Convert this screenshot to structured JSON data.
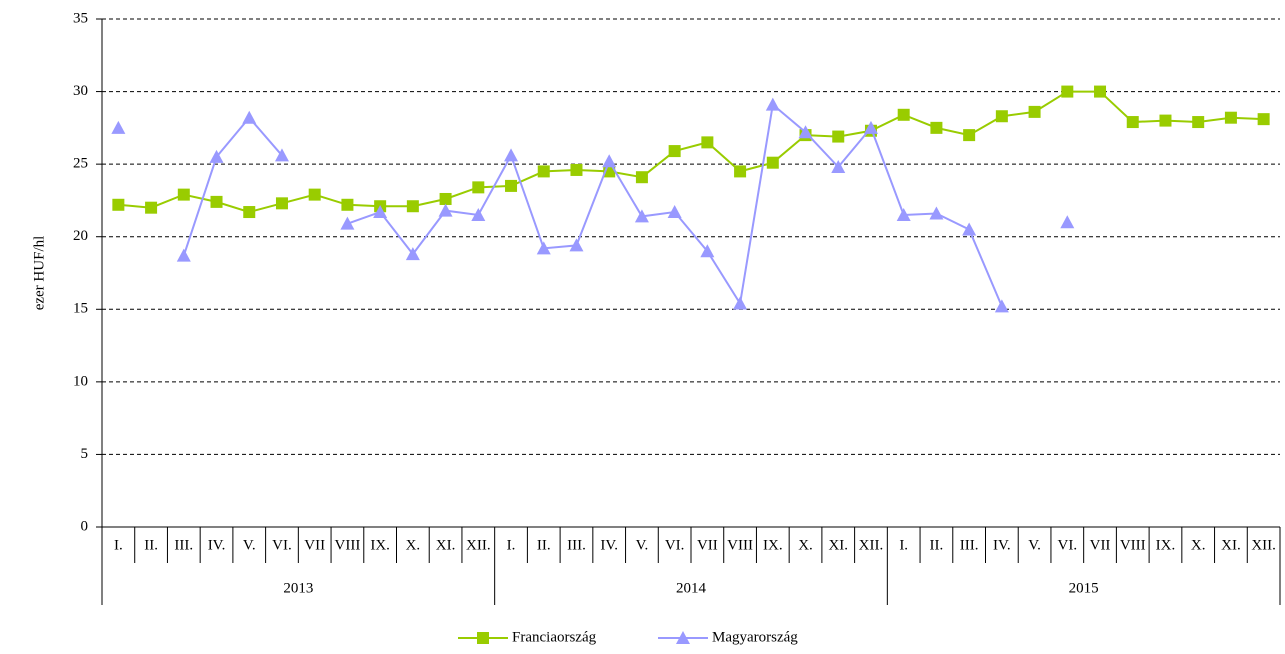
{
  "chart_data": {
    "type": "line",
    "y_label": "ezer HUF/hl",
    "categories": [
      "I.",
      "II.",
      "III.",
      "IV.",
      "V.",
      "VI.",
      "VII",
      "VIII",
      "IX.",
      "X.",
      "XI.",
      "XII.",
      "I.",
      "II.",
      "III.",
      "IV.",
      "V.",
      "VI.",
      "VII",
      "VIII",
      "IX.",
      "X.",
      "XI.",
      "XII.",
      "I.",
      "II.",
      "III.",
      "IV.",
      "V.",
      "VI.",
      "VII",
      "VIII",
      "IX.",
      "X.",
      "XI.",
      "XII."
    ],
    "category_groups": [
      "2013",
      "2014",
      "2015"
    ],
    "series": [
      {
        "name": "Franciaország",
        "color": "#99cc00",
        "marker": "square",
        "values": [
          22.2,
          22.0,
          22.9,
          22.4,
          21.7,
          22.3,
          22.9,
          22.2,
          22.1,
          22.1,
          22.6,
          23.4,
          23.5,
          24.5,
          24.6,
          24.5,
          24.1,
          25.9,
          26.5,
          24.5,
          25.1,
          27.0,
          26.9,
          27.3,
          28.4,
          27.5,
          27.0,
          28.3,
          28.6,
          30.0,
          30.0,
          27.9,
          28.0,
          27.9,
          28.2,
          28.1
        ]
      },
      {
        "name": "Magyarország",
        "color": "#9999ff",
        "marker": "triangle",
        "values": [
          27.5,
          null,
          18.7,
          25.5,
          28.2,
          25.6,
          null,
          20.9,
          21.7,
          18.8,
          21.8,
          21.5,
          25.6,
          19.2,
          19.4,
          25.2,
          21.4,
          21.7,
          19.0,
          15.4,
          29.1,
          27.2,
          24.8,
          27.5,
          21.5,
          21.6,
          20.5,
          15.2,
          null,
          21.0,
          null,
          null,
          null,
          null,
          null,
          null
        ]
      }
    ],
    "ylim": [
      0,
      35
    ],
    "yticks": [
      0,
      5,
      10,
      15,
      20,
      25,
      30,
      35
    ],
    "grid": true,
    "legend": "bottom"
  }
}
